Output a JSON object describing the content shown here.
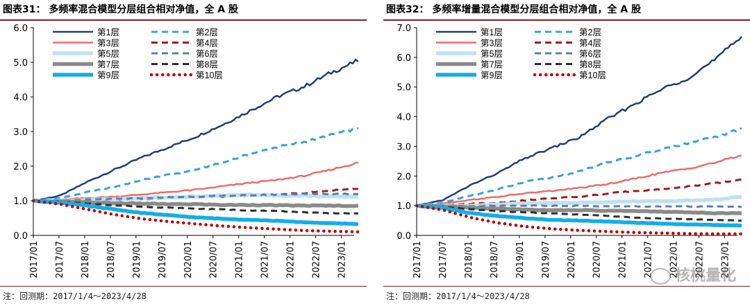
{
  "charts": [
    {
      "title": "图表31：  多频率混合模型分层组合相对净值，全 A 股",
      "note": "注：回测期：2017/1/4～2023/4/28"
    },
    {
      "title": "图表32：  多频率增量混合模型分层组合相对净值，全 A 股",
      "note": "注：回测期：2017/1/4～2023/4/28"
    }
  ],
  "watermark": "核桃量化",
  "chart_data": [
    {
      "type": "line",
      "title": "多频率混合模型分层组合相对净值，全 A 股",
      "xlabel": "",
      "ylabel": "",
      "x_range": [
        2017.0,
        2023.33
      ],
      "ylim": [
        0,
        6
      ],
      "yticks": [
        0,
        1,
        2,
        3,
        4,
        5,
        6
      ],
      "ytick_labels": [
        "0.0",
        "1.0",
        "2.0",
        "3.0",
        "4.0",
        "5.0",
        "6.0"
      ],
      "xtick_labels": [
        "2017/01",
        "2017/07",
        "2018/01",
        "2018/07",
        "2019/01",
        "2019/07",
        "2020/01",
        "2020/07",
        "2021/01",
        "2021/07",
        "2022/01",
        "2022/07",
        "2023/01"
      ],
      "legend_position": "top-left",
      "series": [
        {
          "name": "第1层",
          "color": "#1f3d7a",
          "style": "solid",
          "values": [
            1.0,
            1.15,
            1.55,
            1.9,
            2.25,
            2.55,
            2.85,
            3.2,
            3.6,
            4.0,
            4.3,
            4.7,
            5.05
          ]
        },
        {
          "name": "第2层",
          "color": "#3aa0e0",
          "style": "dash",
          "values": [
            1.0,
            1.08,
            1.25,
            1.4,
            1.6,
            1.75,
            1.9,
            2.1,
            2.35,
            2.55,
            2.7,
            2.9,
            3.1
          ]
        },
        {
          "name": "第3层",
          "color": "#f06a6a",
          "style": "solid",
          "values": [
            1.0,
            1.03,
            1.08,
            1.12,
            1.18,
            1.25,
            1.32,
            1.42,
            1.52,
            1.6,
            1.72,
            1.9,
            2.1
          ]
        },
        {
          "name": "第4层",
          "color": "#a01c1c",
          "style": "dash",
          "values": [
            1.0,
            1.0,
            1.02,
            1.02,
            1.05,
            1.08,
            1.1,
            1.12,
            1.15,
            1.18,
            1.22,
            1.3,
            1.35
          ]
        },
        {
          "name": "第5层",
          "color": "#bfe1f0",
          "style": "solid",
          "values": [
            1.0,
            1.0,
            1.02,
            1.05,
            1.08,
            1.1,
            1.12,
            1.15,
            1.18,
            1.15,
            1.15,
            1.12,
            1.12
          ]
        },
        {
          "name": "第6层",
          "color": "#5a7fb0",
          "style": "dash",
          "values": [
            1.0,
            1.0,
            1.03,
            1.05,
            1.08,
            1.1,
            1.12,
            1.14,
            1.16,
            1.18,
            1.2,
            1.2,
            1.2
          ]
        },
        {
          "name": "第7层",
          "color": "#8a8a8a",
          "style": "solid",
          "values": [
            1.0,
            0.98,
            0.95,
            0.93,
            0.92,
            0.9,
            0.9,
            0.88,
            0.88,
            0.87,
            0.86,
            0.86,
            0.85
          ]
        },
        {
          "name": "第8层",
          "color": "#2e2e2e",
          "style": "dash",
          "values": [
            1.0,
            0.97,
            0.92,
            0.87,
            0.83,
            0.8,
            0.77,
            0.75,
            0.72,
            0.7,
            0.67,
            0.64,
            0.63
          ]
        },
        {
          "name": "第9层",
          "color": "#13aee8",
          "style": "solid",
          "values": [
            1.0,
            0.95,
            0.85,
            0.75,
            0.65,
            0.58,
            0.52,
            0.48,
            0.45,
            0.42,
            0.38,
            0.35,
            0.33
          ]
        },
        {
          "name": "第10层",
          "color": "#c00000",
          "style": "dot",
          "values": [
            1.0,
            0.9,
            0.75,
            0.6,
            0.48,
            0.4,
            0.33,
            0.27,
            0.22,
            0.18,
            0.14,
            0.12,
            0.1
          ]
        }
      ]
    },
    {
      "type": "line",
      "title": "多频率增量混合模型分层组合相对净值，全 A 股",
      "xlabel": "",
      "ylabel": "",
      "x_range": [
        2017.0,
        2023.33
      ],
      "ylim": [
        0,
        7
      ],
      "yticks": [
        0,
        1,
        2,
        3,
        4,
        5,
        6,
        7
      ],
      "ytick_labels": [
        "0.0",
        "1.0",
        "2.0",
        "3.0",
        "4.0",
        "5.0",
        "6.0",
        "7.0"
      ],
      "xtick_labels": [
        "2017/01",
        "2017/07",
        "2018/01",
        "2018/07",
        "2019/01",
        "2019/07",
        "2020/01",
        "2020/07",
        "2021/01",
        "2021/07",
        "2022/01",
        "2022/07",
        "2023/01"
      ],
      "legend_position": "top-left",
      "series": [
        {
          "name": "第1层",
          "color": "#1f3d7a",
          "style": "solid",
          "values": [
            1.0,
            1.2,
            1.7,
            2.1,
            2.6,
            2.95,
            3.3,
            3.9,
            4.4,
            4.9,
            5.3,
            5.9,
            6.7
          ]
        },
        {
          "name": "第2层",
          "color": "#3aa0e0",
          "style": "dash",
          "values": [
            1.0,
            1.1,
            1.35,
            1.55,
            1.8,
            1.95,
            2.15,
            2.45,
            2.65,
            2.9,
            3.1,
            3.3,
            3.6
          ]
        },
        {
          "name": "第3层",
          "color": "#f06a6a",
          "style": "solid",
          "values": [
            1.0,
            1.08,
            1.2,
            1.3,
            1.42,
            1.5,
            1.6,
            1.72,
            1.9,
            2.1,
            2.25,
            2.45,
            2.7
          ]
        },
        {
          "name": "第4层",
          "color": "#a01c1c",
          "style": "dash",
          "values": [
            1.0,
            1.02,
            1.07,
            1.1,
            1.18,
            1.25,
            1.3,
            1.4,
            1.5,
            1.55,
            1.65,
            1.75,
            1.88
          ]
        },
        {
          "name": "第5层",
          "color": "#bfe1f0",
          "style": "solid",
          "values": [
            1.0,
            1.0,
            1.0,
            1.05,
            1.08,
            1.1,
            1.1,
            1.12,
            1.15,
            1.15,
            1.18,
            1.2,
            1.3
          ]
        },
        {
          "name": "第6层",
          "color": "#5a7fb0",
          "style": "dash",
          "values": [
            1.0,
            1.0,
            0.98,
            1.0,
            1.0,
            1.0,
            1.0,
            0.98,
            0.98,
            0.97,
            0.97,
            0.97,
            0.97
          ]
        },
        {
          "name": "第7层",
          "color": "#8a8a8a",
          "style": "solid",
          "values": [
            1.0,
            0.98,
            0.93,
            0.9,
            0.87,
            0.85,
            0.85,
            0.83,
            0.82,
            0.8,
            0.78,
            0.75,
            0.75
          ]
        },
        {
          "name": "第8层",
          "color": "#2e2e2e",
          "style": "dash",
          "values": [
            1.0,
            0.96,
            0.88,
            0.82,
            0.78,
            0.74,
            0.7,
            0.66,
            0.6,
            0.57,
            0.55,
            0.52,
            0.5
          ]
        },
        {
          "name": "第9层",
          "color": "#13aee8",
          "style": "solid",
          "values": [
            1.0,
            0.92,
            0.75,
            0.65,
            0.58,
            0.52,
            0.5,
            0.47,
            0.43,
            0.4,
            0.37,
            0.35,
            0.33
          ]
        },
        {
          "name": "第10层",
          "color": "#c00000",
          "style": "dot",
          "values": [
            1.0,
            0.85,
            0.6,
            0.42,
            0.3,
            0.22,
            0.17,
            0.13,
            0.1,
            0.08,
            0.06,
            0.05,
            0.05
          ]
        }
      ]
    }
  ]
}
